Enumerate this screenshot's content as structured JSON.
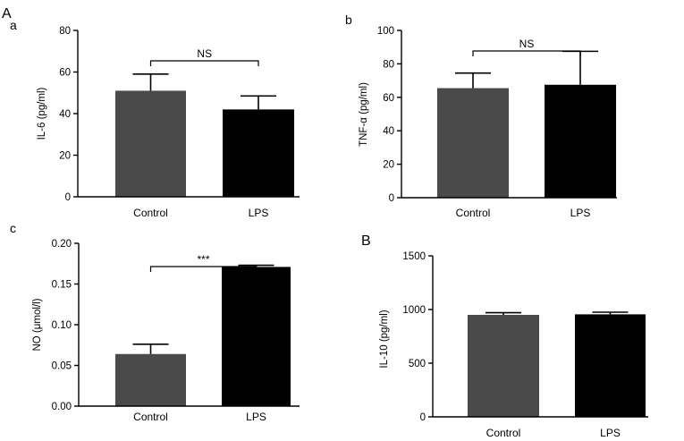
{
  "figure": {
    "panel_label_A": "A",
    "panel_label_B": "B"
  },
  "chart_data": [
    {
      "id": "a",
      "subpanel_label": "a",
      "type": "bar",
      "categories": [
        "Control",
        "LPS"
      ],
      "values": [
        51,
        42
      ],
      "errors": [
        8,
        6.5
      ],
      "colors": [
        "#4a4a4a",
        "#000000"
      ],
      "ylabel": "IL-6 (pg/ml)",
      "ylim": [
        0,
        80
      ],
      "yticks": [
        0,
        20,
        40,
        60,
        80
      ],
      "ytick_labels": [
        "0",
        "20",
        "40",
        "60",
        "80"
      ],
      "significance": "NS"
    },
    {
      "id": "b",
      "subpanel_label": "b",
      "type": "bar",
      "categories": [
        "Control",
        "LPS"
      ],
      "values": [
        65.5,
        67.5
      ],
      "errors": [
        9,
        20
      ],
      "colors": [
        "#4a4a4a",
        "#000000"
      ],
      "ylabel": "TNF-α (pg/ml)",
      "ylim": [
        0,
        100
      ],
      "yticks": [
        0,
        20,
        40,
        60,
        80,
        100
      ],
      "ytick_labels": [
        "0",
        "20",
        "40",
        "60",
        "80",
        "100"
      ],
      "significance": "NS"
    },
    {
      "id": "c",
      "subpanel_label": "c",
      "type": "bar",
      "categories": [
        "Control",
        "LPS"
      ],
      "values": [
        0.064,
        0.171
      ],
      "errors": [
        0.012,
        0.002
      ],
      "colors": [
        "#4a4a4a",
        "#000000"
      ],
      "ylabel": "NO (μmol/l)",
      "ylim": [
        0,
        0.2
      ],
      "yticks": [
        0,
        0.05,
        0.1,
        0.15,
        0.2
      ],
      "ytick_labels": [
        "0.00",
        "0.05",
        "0.10",
        "0.15",
        "0.20"
      ],
      "significance": "***"
    },
    {
      "id": "B",
      "subpanel_label": "",
      "type": "bar",
      "categories": [
        "Control",
        "LPS"
      ],
      "values": [
        950,
        955
      ],
      "errors": [
        20,
        20
      ],
      "colors": [
        "#4a4a4a",
        "#000000"
      ],
      "ylabel": "IL-10 (pg/ml)",
      "ylim": [
        0,
        1500
      ],
      "yticks": [
        0,
        500,
        1000,
        1500
      ],
      "ytick_labels": [
        "0",
        "500",
        "1000",
        "1500"
      ],
      "significance": ""
    }
  ]
}
